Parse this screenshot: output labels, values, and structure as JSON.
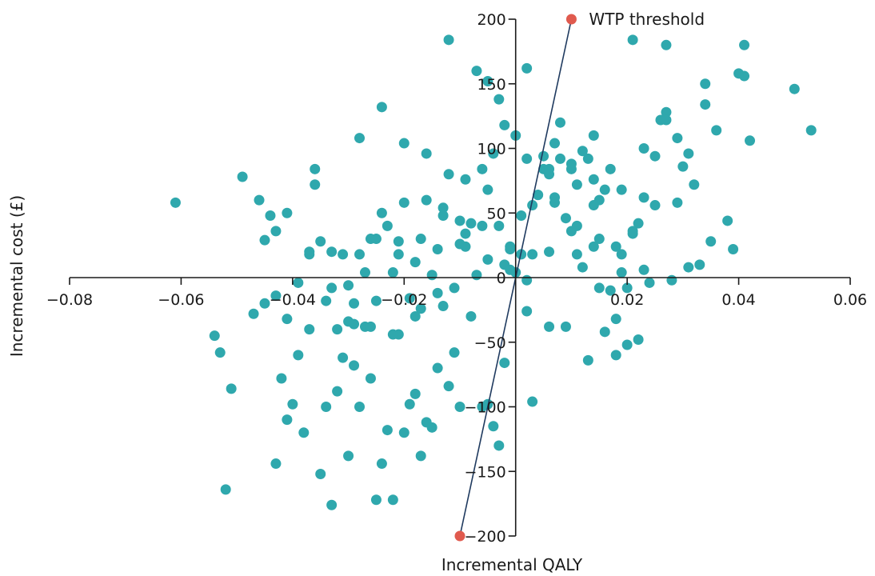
{
  "chart_data": {
    "type": "scatter",
    "title": "",
    "xlabel": "Incremental QALY",
    "ylabel": "Incremental cost (£)",
    "xlim": [
      -0.08,
      0.06
    ],
    "ylim": [
      -200,
      200
    ],
    "x_ticks": [
      {
        "value": -0.08,
        "label": "−0.08"
      },
      {
        "value": -0.06,
        "label": "−0.06"
      },
      {
        "value": -0.04,
        "label": "−0.04"
      },
      {
        "value": -0.02,
        "label": "−0.02"
      },
      {
        "value": 0.02,
        "label": "0.02"
      },
      {
        "value": 0.04,
        "label": "0.04"
      },
      {
        "value": 0.06,
        "label": "0.06"
      }
    ],
    "y_ticks": [
      {
        "value": 200,
        "label": "200"
      },
      {
        "value": 150,
        "label": "150"
      },
      {
        "value": 100,
        "label": "100"
      },
      {
        "value": 50,
        "label": "50"
      },
      {
        "value": 0,
        "label": "0"
      },
      {
        "value": -50,
        "label": "−50"
      },
      {
        "value": -100,
        "label": "−100"
      },
      {
        "value": -150,
        "label": "−150"
      },
      {
        "value": -200,
        "label": "−200"
      }
    ],
    "grid": false,
    "colors": {
      "points": "#2fa8ad",
      "wtp_line": "#1f3a5f",
      "wtp_marker": "#e05a4e",
      "axis": "#1a1a1a"
    },
    "wtp_line": {
      "label": "WTP threshold",
      "points": [
        {
          "x": -0.01,
          "y": -200
        },
        {
          "x": 0.01,
          "y": 200
        }
      ]
    },
    "series": [
      {
        "x": [
          -0.061,
          -0.052,
          -0.053,
          -0.054,
          -0.051,
          -0.047,
          -0.045,
          -0.044,
          -0.043,
          -0.042,
          -0.041,
          -0.04,
          -0.039,
          -0.038,
          -0.037,
          -0.036,
          -0.035,
          -0.034,
          -0.033,
          -0.032,
          -0.031,
          -0.03,
          -0.029,
          -0.028,
          -0.027,
          -0.026,
          -0.025,
          -0.024,
          -0.023,
          -0.022,
          -0.021,
          -0.02,
          -0.019,
          -0.018,
          -0.017,
          -0.016,
          -0.015,
          -0.014,
          -0.013,
          -0.012,
          -0.011,
          -0.01,
          -0.009,
          -0.008,
          -0.007,
          -0.006,
          -0.005,
          -0.004,
          -0.003,
          -0.002,
          -0.001,
          0.0,
          0.001,
          0.002,
          0.003,
          0.004,
          0.005,
          0.006,
          0.007,
          0.008,
          0.009,
          0.01,
          0.011,
          0.012,
          0.013,
          0.014,
          0.015,
          0.016,
          0.017,
          0.018,
          0.019,
          0.02,
          0.021,
          0.022,
          0.023,
          0.024,
          0.025,
          0.026,
          0.027,
          0.028,
          0.029,
          0.03,
          0.031,
          0.032,
          0.033,
          0.034,
          0.035,
          0.036,
          0.038,
          0.039,
          0.041,
          0.042,
          0.05,
          0.053,
          -0.045,
          -0.043,
          -0.041,
          -0.039,
          -0.037,
          -0.035,
          -0.033,
          -0.031,
          -0.029,
          -0.027,
          -0.025,
          -0.023,
          -0.021,
          -0.019,
          -0.017,
          -0.015,
          -0.013,
          -0.011,
          -0.009,
          -0.007,
          -0.005,
          -0.003,
          -0.001,
          0.001,
          0.003,
          0.005,
          0.007,
          0.009,
          0.011,
          0.013,
          0.015,
          0.017,
          0.019,
          0.021,
          0.023,
          0.025,
          0.027,
          0.029,
          0.031,
          -0.036,
          -0.034,
          -0.032,
          -0.03,
          -0.028,
          -0.026,
          -0.024,
          -0.022,
          -0.02,
          -0.018,
          -0.016,
          -0.014,
          -0.012,
          -0.01,
          -0.008,
          -0.006,
          -0.004,
          -0.002,
          0.0,
          0.002,
          0.004,
          0.006,
          0.008,
          0.01,
          0.012,
          0.014,
          0.016,
          0.018,
          0.02,
          0.022,
          -0.03,
          -0.026,
          -0.022,
          -0.018,
          -0.014,
          -0.01,
          -0.006,
          -0.002,
          0.002,
          0.006,
          0.01,
          0.014,
          0.018,
          -0.033,
          -0.029,
          -0.025,
          -0.021,
          -0.017,
          -0.013,
          -0.009,
          -0.005,
          -0.001,
          0.003,
          0.007,
          0.011,
          0.015,
          0.019,
          0.023,
          0.027,
          -0.012,
          -0.003,
          0.006,
          0.021,
          0.041,
          0.034,
          0.04,
          -0.043,
          -0.037,
          -0.041,
          -0.049,
          -0.046,
          -0.028,
          -0.024,
          -0.02,
          -0.016,
          -0.005,
          0.002,
          0.014
        ],
        "y": [
          58,
          -164,
          -58,
          -45,
          -86,
          -28,
          29,
          48,
          -144,
          -78,
          -110,
          -98,
          -60,
          -120,
          -40,
          84,
          -152,
          -100,
          -176,
          -88,
          -62,
          -138,
          -68,
          -100,
          -38,
          -78,
          -172,
          -144,
          -118,
          -172,
          -44,
          -120,
          -98,
          -90,
          -138,
          -112,
          -116,
          -70,
          -22,
          -84,
          -58,
          -100,
          76,
          -30,
          160,
          -100,
          -98,
          -115,
          -130,
          -66,
          22,
          4,
          18,
          -26,
          -96,
          64,
          94,
          -38,
          58,
          120,
          -38,
          84,
          18,
          8,
          -64,
          24,
          -8,
          -42,
          -10,
          -32,
          4,
          -8,
          34,
          42,
          6,
          -4,
          56,
          122,
          128,
          -2,
          108,
          86,
          8,
          72,
          10,
          134,
          28,
          114,
          44,
          22,
          156,
          106,
          146,
          114,
          -20,
          -14,
          -32,
          -4,
          18,
          28,
          -8,
          18,
          -36,
          4,
          -18,
          40,
          18,
          -16,
          30,
          2,
          54,
          -8,
          34,
          2,
          68,
          40,
          24,
          48,
          56,
          84,
          104,
          46,
          72,
          92,
          60,
          84,
          68,
          36,
          100,
          94,
          122,
          58,
          96,
          72,
          -18,
          -40,
          -6,
          18,
          30,
          50,
          4,
          58,
          12,
          60,
          22,
          80,
          44,
          42,
          84,
          96,
          118,
          110,
          92,
          64,
          80,
          92,
          88,
          98,
          76,
          68,
          -60,
          -52,
          -48,
          -34,
          -38,
          -44,
          -30,
          -12,
          26,
          40,
          10,
          -2,
          20,
          36,
          56,
          24,
          20,
          -20,
          30,
          28,
          -24,
          48,
          24,
          14,
          6,
          18,
          62,
          40,
          30,
          18,
          62,
          180,
          184,
          138,
          84,
          184,
          180,
          150,
          158,
          36,
          20,
          50,
          78,
          60,
          108,
          132,
          104,
          96,
          152,
          162,
          110
        ]
      }
    ]
  }
}
